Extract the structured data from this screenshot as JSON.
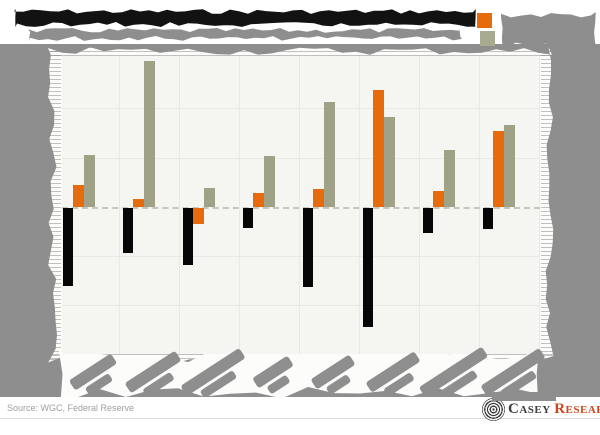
{
  "page": {
    "background": "#ffffff",
    "backdrop_color": "#8e8e8e",
    "paper_color": "#fcfcfa",
    "plot_background": "#f5f5f2"
  },
  "header": {
    "title_text": "",
    "subtitle_text": "",
    "note": "title and subtitle are rendered as illegible blobs in the source screenshot"
  },
  "legend": {
    "position": "top-right",
    "entries": [
      {
        "swatch_color": "#e66b0c",
        "label": ""
      },
      {
        "swatch_color": "#a9ab90",
        "label": ""
      }
    ],
    "note": "legend label text is illegible in the source screenshot"
  },
  "chart_data": {
    "type": "bar",
    "title": "",
    "xlabel": "",
    "ylabel": "",
    "categories": [
      "",
      "",
      "",
      "",
      "",
      "",
      "",
      ""
    ],
    "series": [
      {
        "name": "black-series",
        "color": "#060606",
        "values": [
          -1.58,
          -0.91,
          -1.16,
          -0.4,
          -1.6,
          -2.41,
          -0.51,
          -0.43
        ]
      },
      {
        "name": "orange-series",
        "color": "#e66b0c",
        "values": [
          0.45,
          0.16,
          -0.32,
          0.28,
          0.36,
          2.37,
          0.32,
          1.54
        ]
      },
      {
        "name": "olive-series",
        "color": "#a0a287",
        "values": [
          1.05,
          2.96,
          0.39,
          1.04,
          2.12,
          1.83,
          1.16,
          1.66
        ]
      }
    ],
    "units": "gridline intervals (y-axis tick labels are torn off / not visible)",
    "ylim": [
      -3.0,
      3.1
    ],
    "zero_line": "dashed",
    "grid": true,
    "note": "8 category groups; x-axis category labels are rotated illegible blobs; no axis numbers visible"
  },
  "footer": {
    "source_note": "Source: WGC, Federal Reserve",
    "brand": {
      "word1": "Casey",
      "word2": "Research"
    }
  }
}
